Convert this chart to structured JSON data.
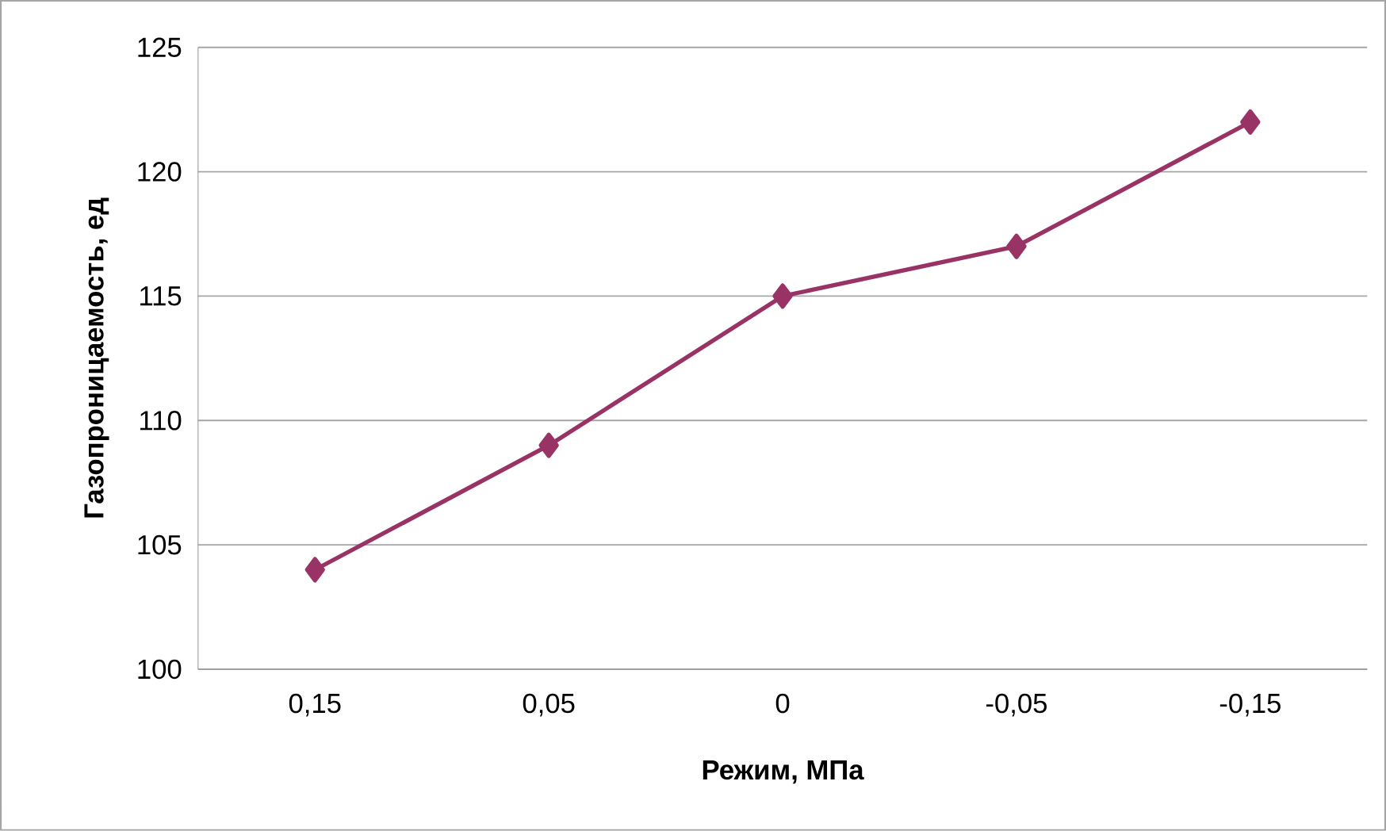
{
  "chart_data": {
    "type": "line",
    "xlabel": "Режим, МПа",
    "ylabel": "Газопроницаемость, ед",
    "categories": [
      "0,15",
      "0,05",
      "0",
      "-0,05",
      "-0,15"
    ],
    "series": [
      {
        "color": "#993366",
        "values": [
          104,
          109,
          115,
          117,
          122
        ]
      }
    ],
    "ylim": [
      100,
      125
    ],
    "yticks": [
      100,
      105,
      110,
      115,
      120,
      125
    ],
    "grid": "y",
    "marker": "diamond",
    "line_style": "solid"
  }
}
